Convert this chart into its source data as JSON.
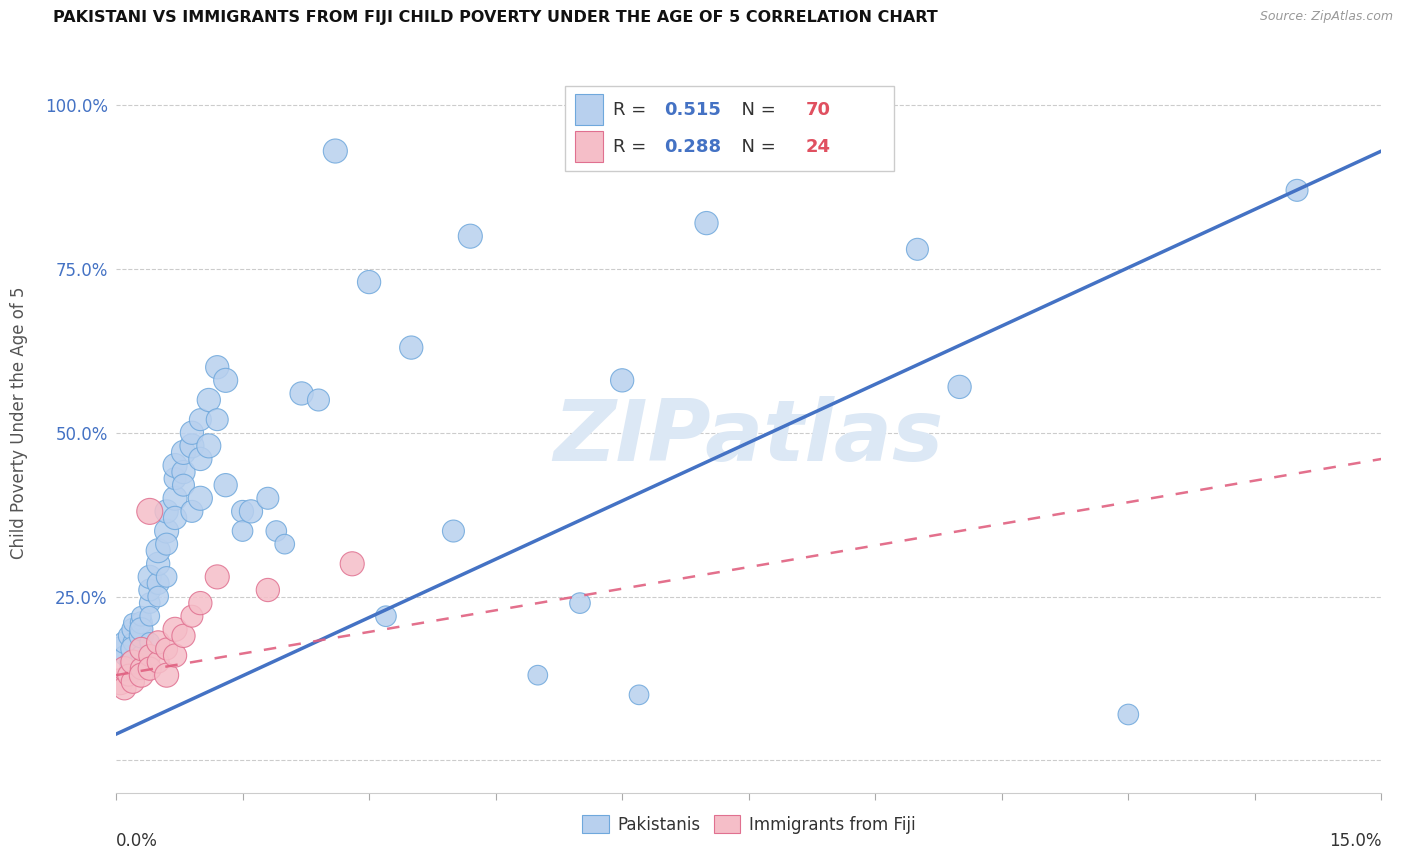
{
  "title": "PAKISTANI VS IMMIGRANTS FROM FIJI CHILD POVERTY UNDER THE AGE OF 5 CORRELATION CHART",
  "source": "Source: ZipAtlas.com",
  "ylabel": "Child Poverty Under the Age of 5",
  "y_ticks": [
    0.0,
    0.25,
    0.5,
    0.75,
    1.0
  ],
  "y_tick_labels": [
    "",
    "25.0%",
    "50.0%",
    "75.0%",
    "100.0%"
  ],
  "xlim": [
    0.0,
    0.15
  ],
  "ylim": [
    -0.05,
    1.08
  ],
  "pakistani_R": "0.515",
  "pakistani_N": "70",
  "fiji_R": "0.288",
  "fiji_N": "24",
  "blue_fill": "#b8d0ee",
  "pink_fill": "#f5bec8",
  "blue_edge": "#6fa8dc",
  "pink_edge": "#e07090",
  "blue_trend": "#4472c4",
  "pink_trend": "#e06080",
  "watermark": "ZIPatlas",
  "watermark_color": "#dce8f5",
  "r_text_color": "#4472c4",
  "n_text_color": "#e05060",
  "label_color": "#4472c4",
  "grid_color": "#cccccc",
  "pak_trend_x0": 0.0,
  "pak_trend_y0": 0.04,
  "pak_trend_x1": 0.15,
  "pak_trend_y1": 0.93,
  "fij_trend_x0": 0.0,
  "fij_trend_y0": 0.13,
  "fij_trend_x1": 0.15,
  "fij_trend_y1": 0.46,
  "pak_x": [
    0.0005,
    0.001,
    0.001,
    0.0015,
    0.0015,
    0.002,
    0.002,
    0.002,
    0.002,
    0.002,
    0.003,
    0.003,
    0.003,
    0.003,
    0.003,
    0.004,
    0.004,
    0.004,
    0.004,
    0.004,
    0.005,
    0.005,
    0.005,
    0.005,
    0.006,
    0.006,
    0.006,
    0.006,
    0.007,
    0.007,
    0.007,
    0.007,
    0.008,
    0.008,
    0.008,
    0.009,
    0.009,
    0.009,
    0.01,
    0.01,
    0.01,
    0.011,
    0.011,
    0.012,
    0.012,
    0.013,
    0.013,
    0.015,
    0.015,
    0.016,
    0.018,
    0.019,
    0.02,
    0.022,
    0.024,
    0.026,
    0.03,
    0.032,
    0.035,
    0.04,
    0.042,
    0.05,
    0.055,
    0.06,
    0.062,
    0.07,
    0.095,
    0.1,
    0.12,
    0.14
  ],
  "pak_y": [
    0.17,
    0.16,
    0.18,
    0.15,
    0.19,
    0.14,
    0.18,
    0.2,
    0.17,
    0.21,
    0.16,
    0.19,
    0.21,
    0.22,
    0.2,
    0.18,
    0.24,
    0.26,
    0.28,
    0.22,
    0.27,
    0.3,
    0.32,
    0.25,
    0.35,
    0.33,
    0.38,
    0.28,
    0.4,
    0.43,
    0.37,
    0.45,
    0.44,
    0.47,
    0.42,
    0.48,
    0.5,
    0.38,
    0.46,
    0.4,
    0.52,
    0.55,
    0.48,
    0.6,
    0.52,
    0.58,
    0.42,
    0.38,
    0.35,
    0.38,
    0.4,
    0.35,
    0.33,
    0.56,
    0.55,
    0.93,
    0.73,
    0.22,
    0.63,
    0.35,
    0.8,
    0.13,
    0.24,
    0.58,
    0.1,
    0.82,
    0.78,
    0.57,
    0.07,
    0.87
  ],
  "pak_s": [
    300,
    200,
    250,
    180,
    220,
    350,
    200,
    250,
    300,
    180,
    220,
    300,
    250,
    200,
    280,
    200,
    220,
    250,
    280,
    200,
    250,
    280,
    300,
    220,
    300,
    250,
    280,
    220,
    300,
    250,
    280,
    300,
    280,
    300,
    250,
    300,
    280,
    250,
    280,
    300,
    250,
    280,
    300,
    280,
    250,
    300,
    280,
    250,
    220,
    280,
    250,
    220,
    200,
    280,
    250,
    300,
    280,
    220,
    280,
    250,
    300,
    200,
    220,
    280,
    200,
    280,
    250,
    280,
    220,
    250
  ],
  "fij_x": [
    0.0005,
    0.001,
    0.001,
    0.0015,
    0.002,
    0.002,
    0.003,
    0.003,
    0.003,
    0.004,
    0.004,
    0.004,
    0.005,
    0.005,
    0.006,
    0.006,
    0.007,
    0.007,
    0.008,
    0.009,
    0.01,
    0.012,
    0.018,
    0.028
  ],
  "fij_y": [
    0.12,
    0.11,
    0.14,
    0.13,
    0.12,
    0.15,
    0.14,
    0.17,
    0.13,
    0.16,
    0.38,
    0.14,
    0.15,
    0.18,
    0.13,
    0.17,
    0.16,
    0.2,
    0.19,
    0.22,
    0.24,
    0.28,
    0.26,
    0.3
  ],
  "fij_s": [
    350,
    280,
    300,
    250,
    280,
    300,
    250,
    280,
    300,
    250,
    350,
    280,
    250,
    280,
    300,
    250,
    280,
    300,
    280,
    250,
    280,
    300,
    280,
    300
  ]
}
